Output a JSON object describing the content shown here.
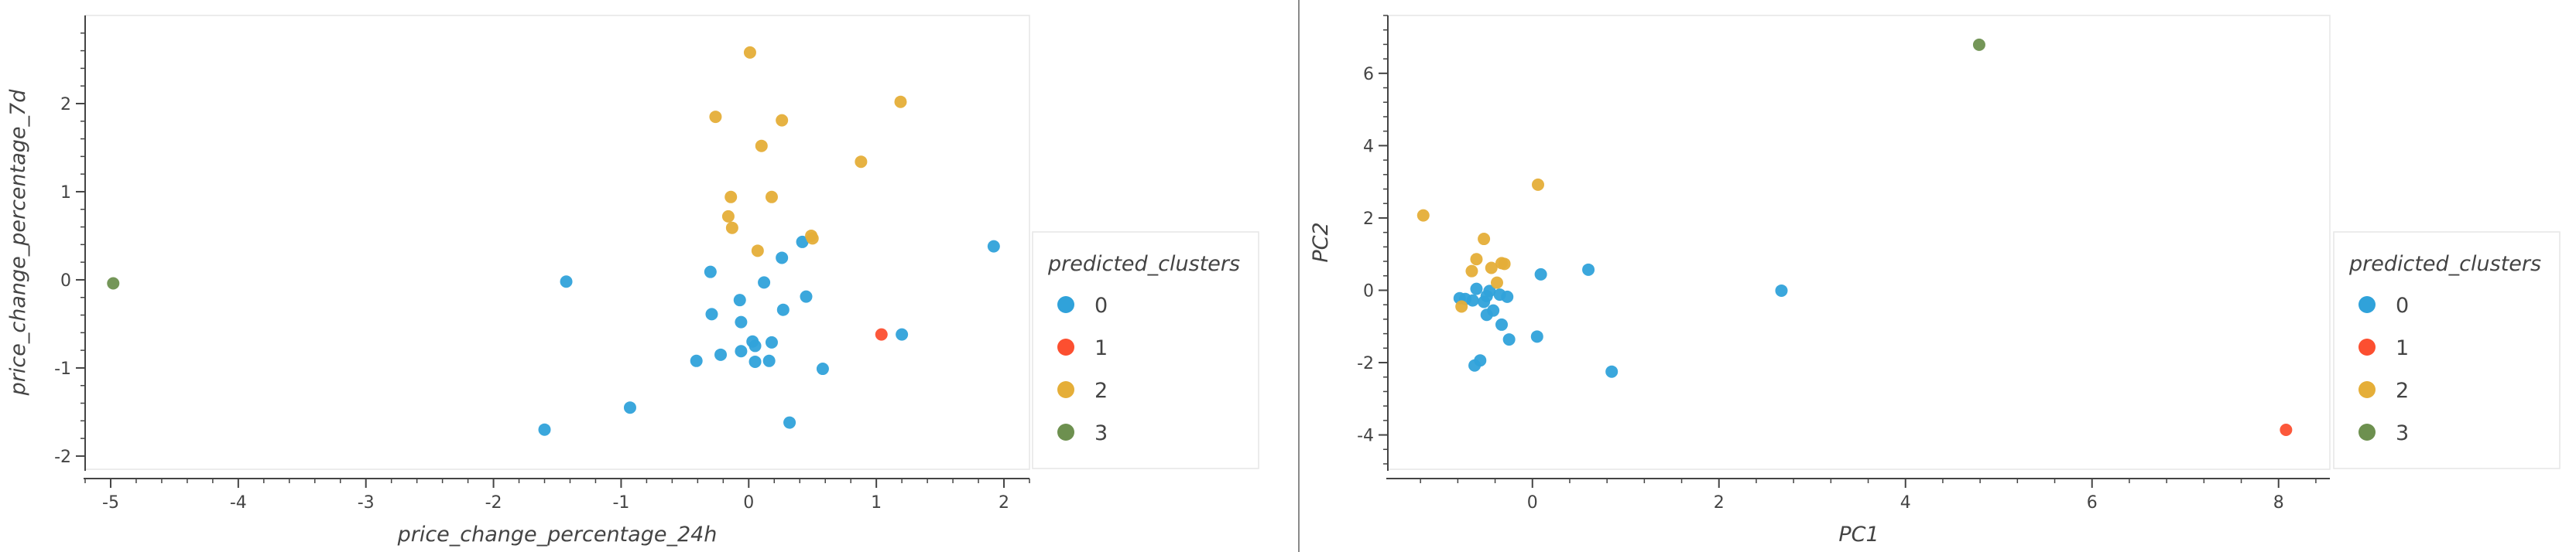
{
  "chart_data": [
    {
      "type": "scatter",
      "xlabel": "price_change_percentage_24h",
      "ylabel": "price_change_percentage_7d",
      "xlim": [
        -5.2,
        2.2
      ],
      "ylim": [
        -2.15,
        3.0
      ],
      "xticks": [
        -5,
        -4,
        -3,
        -2,
        -1,
        0,
        1,
        2
      ],
      "yticks": [
        -2,
        -1,
        0,
        1,
        2
      ],
      "legend_title": "predicted_clusters",
      "legend_position": "right",
      "series": [
        {
          "name": "0",
          "color": "#30a2da",
          "points": [
            [
              1.92,
              0.38
            ],
            [
              0.42,
              0.43
            ],
            [
              0.26,
              0.25
            ],
            [
              -0.3,
              0.09
            ],
            [
              0.12,
              -0.03
            ],
            [
              0.45,
              -0.19
            ],
            [
              -0.07,
              -0.23
            ],
            [
              0.27,
              -0.34
            ],
            [
              -0.29,
              -0.39
            ],
            [
              -0.06,
              -0.48
            ],
            [
              -0.22,
              -0.85
            ],
            [
              -0.41,
              -0.92
            ],
            [
              0.03,
              -0.7
            ],
            [
              0.05,
              -0.75
            ],
            [
              0.18,
              -0.71
            ],
            [
              -0.06,
              -0.81
            ],
            [
              0.05,
              -0.93
            ],
            [
              0.16,
              -0.92
            ],
            [
              0.58,
              -1.01
            ],
            [
              -0.93,
              -1.45
            ],
            [
              0.32,
              -1.62
            ],
            [
              -1.6,
              -1.7
            ],
            [
              -1.43,
              -0.02
            ],
            [
              1.2,
              -0.62
            ]
          ]
        },
        {
          "name": "1",
          "color": "#fc4f30",
          "points": [
            [
              1.04,
              -0.62
            ]
          ]
        },
        {
          "name": "2",
          "color": "#e5ae38",
          "points": [
            [
              0.01,
              2.58
            ],
            [
              1.19,
              2.02
            ],
            [
              -0.26,
              1.85
            ],
            [
              0.26,
              1.81
            ],
            [
              0.1,
              1.52
            ],
            [
              0.88,
              1.34
            ],
            [
              -0.14,
              0.94
            ],
            [
              0.18,
              0.94
            ],
            [
              -0.16,
              0.72
            ],
            [
              -0.13,
              0.59
            ],
            [
              0.49,
              0.5
            ],
            [
              0.5,
              0.47
            ],
            [
              0.07,
              0.33
            ]
          ]
        },
        {
          "name": "3",
          "color": "#6d904f",
          "points": [
            [
              -4.98,
              -0.04
            ]
          ]
        }
      ]
    },
    {
      "type": "scatter",
      "xlabel": "PC1",
      "ylabel": "PC2",
      "xlim": [
        -1.55,
        8.55
      ],
      "ylim": [
        -4.95,
        7.6
      ],
      "xticks": [
        0,
        2,
        4,
        6,
        8
      ],
      "yticks": [
        -4,
        -2,
        0,
        2,
        4,
        6
      ],
      "legend_title": "predicted_clusters",
      "legend_position": "right",
      "series": [
        {
          "name": "0",
          "color": "#30a2da",
          "points": [
            [
              2.67,
              -0.01
            ],
            [
              0.6,
              0.57
            ],
            [
              0.09,
              0.44
            ],
            [
              -0.6,
              0.04
            ],
            [
              -0.46,
              -0.02
            ],
            [
              -0.35,
              -0.12
            ],
            [
              -0.27,
              -0.18
            ],
            [
              -0.49,
              -0.16
            ],
            [
              -0.64,
              -0.28
            ],
            [
              -0.72,
              -0.24
            ],
            [
              -0.52,
              -0.32
            ],
            [
              -0.78,
              -0.22
            ],
            [
              -0.42,
              -0.56
            ],
            [
              -0.49,
              -0.68
            ],
            [
              -0.33,
              -0.95
            ],
            [
              0.05,
              -1.28
            ],
            [
              -0.25,
              -1.36
            ],
            [
              0.85,
              -2.25
            ],
            [
              -0.56,
              -1.94
            ],
            [
              -0.62,
              -2.08
            ]
          ]
        },
        {
          "name": "1",
          "color": "#fc4f30",
          "points": [
            [
              8.08,
              -3.86
            ]
          ]
        },
        {
          "name": "2",
          "color": "#e5ae38",
          "points": [
            [
              -1.17,
              2.07
            ],
            [
              0.06,
              2.92
            ],
            [
              -0.52,
              1.42
            ],
            [
              -0.6,
              0.86
            ],
            [
              -0.44,
              0.62
            ],
            [
              -0.33,
              0.75
            ],
            [
              -0.3,
              0.73
            ],
            [
              -0.38,
              0.21
            ],
            [
              -0.65,
              0.53
            ],
            [
              -0.76,
              -0.45
            ]
          ]
        },
        {
          "name": "3",
          "color": "#6d904f",
          "points": [
            [
              4.79,
              6.79
            ]
          ]
        }
      ]
    }
  ]
}
